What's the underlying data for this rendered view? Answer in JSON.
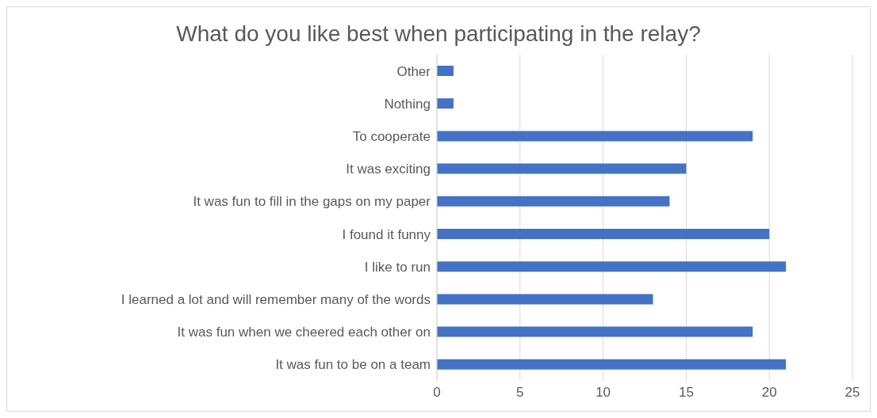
{
  "chart_data": {
    "type": "bar",
    "orientation": "horizontal",
    "title": "What do you like best when participating in the relay?",
    "categories": [
      "Other",
      "Nothing",
      "To cooperate",
      "It was exciting",
      "It was fun to fill in the gaps on my paper",
      "I found it funny",
      "I like to run",
      "I learned a lot and will remember many of the words",
      "It was fun when we cheered each other on",
      "It was fun to be on a team"
    ],
    "values": [
      1,
      1,
      19,
      15,
      14,
      20,
      21,
      13,
      19,
      21
    ],
    "color": "#4472c4",
    "xlim": [
      0,
      25
    ],
    "xticks": [
      0,
      5,
      10,
      15,
      20,
      25
    ],
    "grid": "x"
  }
}
